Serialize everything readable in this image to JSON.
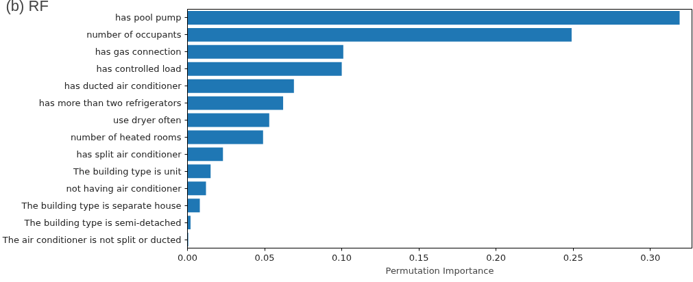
{
  "chart_data": {
    "type": "bar",
    "orientation": "horizontal",
    "title": "(b) RF",
    "xlabel": "Permutation Importance",
    "categories": [
      "has pool pump",
      "number of occupants",
      "has gas connection",
      "has controlled load",
      "has ducted air conditioner",
      "has more than two refrigerators",
      "use dryer often",
      "number of heated rooms",
      "has split air conditioner",
      "The building type is unit",
      "not having air conditioner",
      "The building type is separate house",
      "The building type is semi-detached",
      "The air conditioner is not split or ducted"
    ],
    "values": [
      0.319,
      0.249,
      0.101,
      0.1,
      0.069,
      0.062,
      0.053,
      0.049,
      0.023,
      0.015,
      0.012,
      0.008,
      0.002,
      0.0005
    ],
    "color": "#1f77b4",
    "xlim": [
      0,
      0.327
    ],
    "xticks": [
      {
        "value": 0,
        "label": "0.00"
      },
      {
        "value": 0.05,
        "label": "0.05"
      },
      {
        "value": 0.1,
        "label": "0.10"
      },
      {
        "value": 0.15,
        "label": "0.15"
      },
      {
        "value": 0.2,
        "label": "0.20"
      },
      {
        "value": 0.25,
        "label": "0.25"
      },
      {
        "value": 0.3,
        "label": "0.30"
      }
    ],
    "grid": false
  }
}
